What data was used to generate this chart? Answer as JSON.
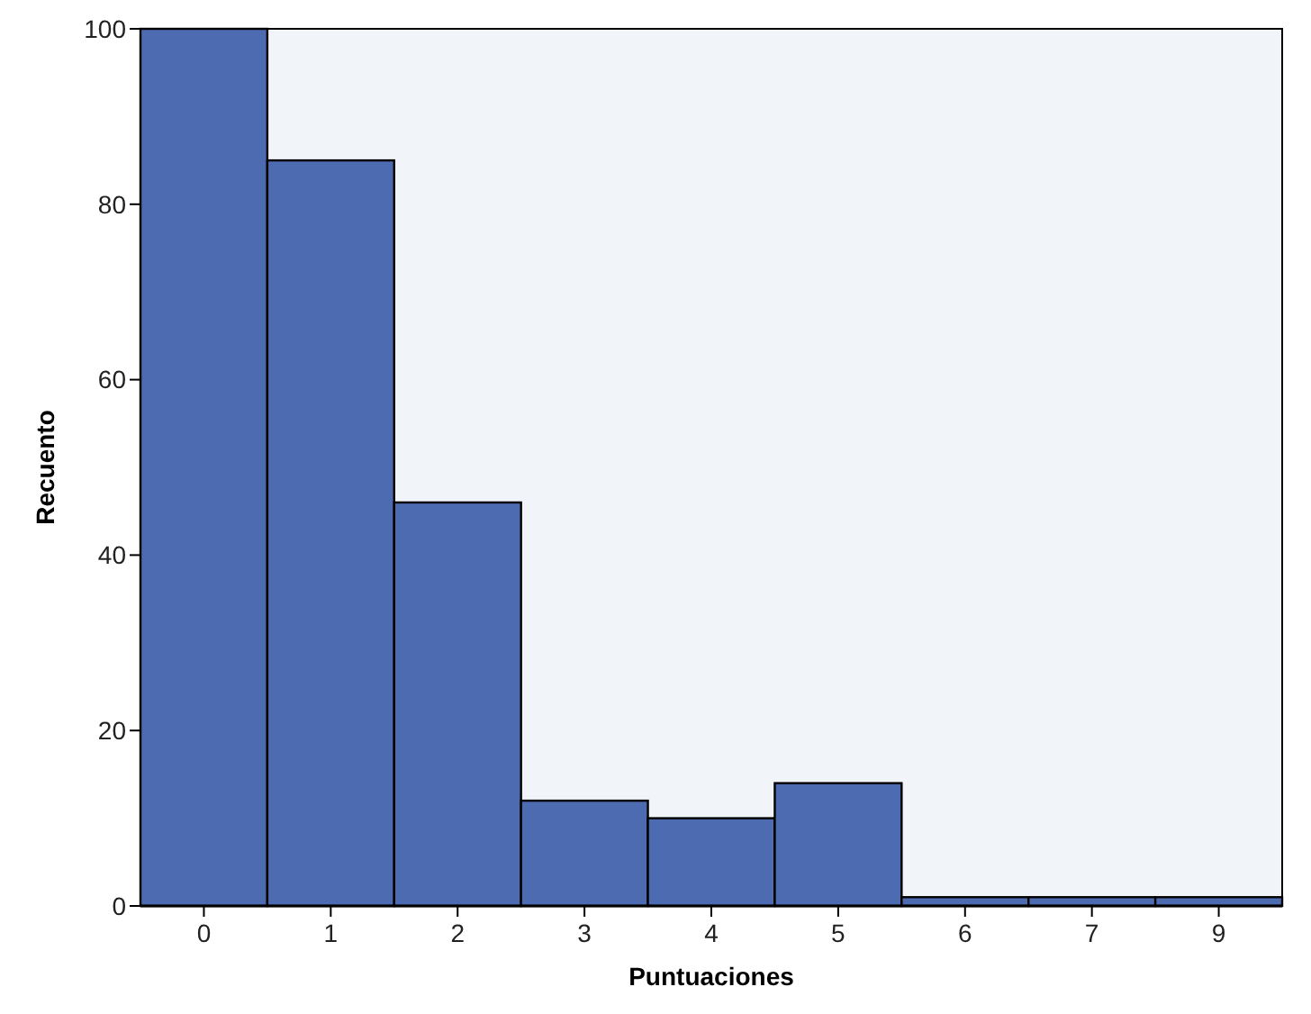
{
  "chart_data": {
    "type": "bar",
    "xlabel": "Puntuaciones",
    "ylabel": "Recuento",
    "categories": [
      "0",
      "1",
      "2",
      "3",
      "4",
      "5",
      "6",
      "7",
      "9"
    ],
    "values": [
      100,
      85,
      46,
      12,
      10,
      14,
      1,
      1,
      1
    ],
    "color": "#4d6bb0",
    "ylim": [
      0,
      100
    ],
    "yticks": [
      0,
      20,
      40,
      60,
      80,
      100
    ],
    "grid": false
  }
}
